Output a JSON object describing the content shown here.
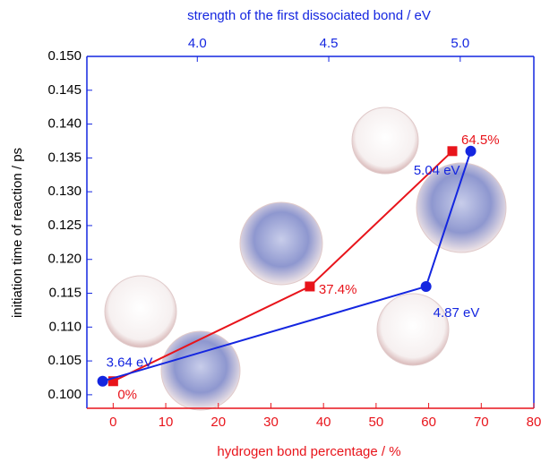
{
  "chart_data": {
    "type": "line",
    "x_label": "hydrogen bond percentage / %",
    "x2_label": "strength of the first dissociated bond / eV",
    "y_label": "initiation time of reaction / ps",
    "xlim": [
      -5,
      80
    ],
    "xticks": [
      0,
      10,
      20,
      30,
      40,
      50,
      60,
      70,
      80
    ],
    "x2lim": [
      3.58,
      5.28
    ],
    "x2ticks": [
      {
        "value": 4,
        "label": "4.0"
      },
      4.5,
      {
        "value": 5,
        "label": "5.0"
      }
    ],
    "ylim": [
      0.098,
      0.15
    ],
    "yticks": [
      {
        "value": 0.1,
        "label": "0.100"
      },
      0.105,
      {
        "value": 0.11,
        "label": "0.110"
      },
      0.115,
      {
        "value": 0.12,
        "label": "0.120"
      },
      0.125,
      {
        "value": 0.13,
        "label": "0.130"
      },
      0.135,
      {
        "value": 0.14,
        "label": "0.140"
      },
      0.145,
      {
        "value": 0.15,
        "label": "0.150"
      }
    ],
    "series": [
      {
        "color": "#e8141b",
        "marker": "square",
        "axis": "x",
        "x": [
          0,
          37.4,
          64.5
        ],
        "values": [
          0.102,
          0.116,
          0.136
        ],
        "value_labels": [
          "0%",
          "37.4%",
          "64.5%"
        ]
      },
      {
        "color": "#1426e0",
        "marker": "circle",
        "axis": "x2",
        "x": [
          3.64,
          4.87,
          5.04
        ],
        "values": [
          0.102,
          0.116,
          0.136
        ],
        "value_labels": [
          "3.64 eV",
          "4.87 eV",
          "5.04 eV"
        ]
      }
    ]
  }
}
